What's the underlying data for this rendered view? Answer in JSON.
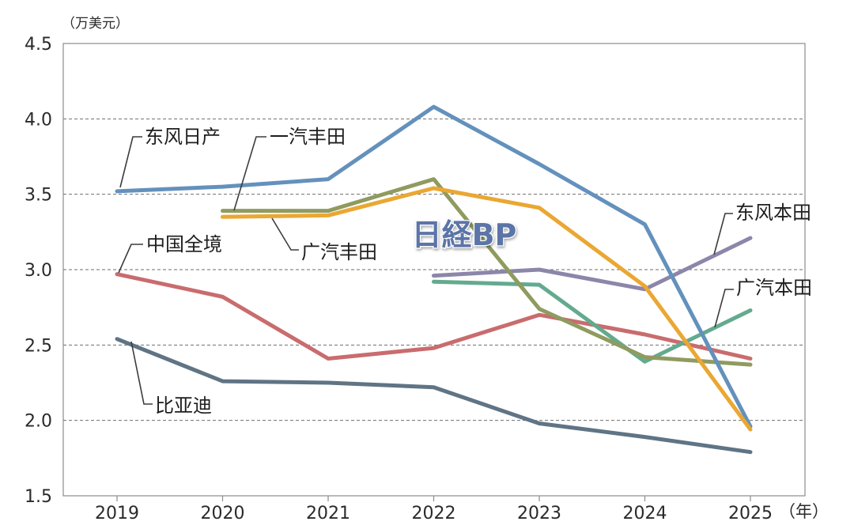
{
  "chart_data": {
    "type": "line",
    "x": [
      2019,
      2020,
      2021,
      2022,
      2023,
      2024,
      2025
    ],
    "x_tick_labels": [
      "2019",
      "2020",
      "2021",
      "2022",
      "2023",
      "2024",
      "2025"
    ],
    "xlabel": "（年）",
    "ylabel": "（万美元）",
    "ylim": [
      1.5,
      4.5
    ],
    "y_ticks": [
      1.5,
      2.0,
      2.5,
      3.0,
      3.5,
      4.0,
      4.5
    ],
    "y_tick_labels": [
      "1.5",
      "2.0",
      "2.5",
      "3.0",
      "3.5",
      "4.0",
      "4.5"
    ],
    "grid": true,
    "legend": "inline",
    "series": [
      {
        "name": "东风日产",
        "color": "#6491bc",
        "values": [
          3.52,
          3.55,
          3.6,
          4.08,
          3.7,
          3.3,
          1.96
        ]
      },
      {
        "name": "一汽丰田",
        "color": "#8f9b5f",
        "values": [
          null,
          3.39,
          3.39,
          3.6,
          2.74,
          2.42,
          2.37
        ]
      },
      {
        "name": "广汽丰田",
        "color": "#eaa733",
        "values": [
          null,
          3.35,
          3.36,
          3.54,
          3.41,
          2.89,
          1.94
        ]
      },
      {
        "name": "中国全境",
        "color": "#c96c6e",
        "values": [
          2.97,
          2.82,
          2.41,
          2.48,
          2.7,
          2.57,
          2.41
        ]
      },
      {
        "name": "比亚迪",
        "color": "#5f7485",
        "values": [
          2.54,
          2.26,
          2.25,
          2.22,
          1.98,
          1.89,
          1.79
        ]
      },
      {
        "name": "东风本田",
        "color": "#8c86aa",
        "values": [
          null,
          null,
          null,
          2.96,
          3.0,
          2.87,
          3.21
        ]
      },
      {
        "name": "广汽本田",
        "color": "#63aa8f",
        "values": [
          null,
          null,
          null,
          2.92,
          2.9,
          2.39,
          2.73
        ]
      }
    ]
  },
  "watermark": "日経BP"
}
